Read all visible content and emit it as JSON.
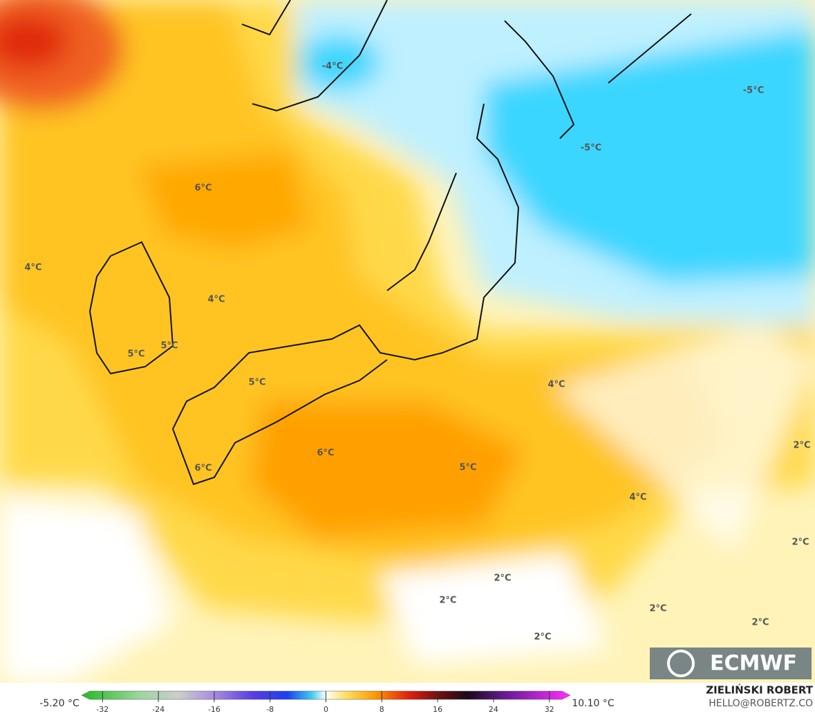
{
  "map": {
    "labels": [
      "-4°C",
      "-5°C",
      "-5°C",
      "6°C",
      "4°C",
      "4°C",
      "5°C",
      "5°C",
      "5°C",
      "4°C",
      "6°C",
      "5°C",
      "6°C",
      "2°C",
      "4°C",
      "2°C",
      "2°C",
      "2°C",
      "2°C",
      "2°C",
      "2°C"
    ],
    "logo": "ECMWF",
    "colorbar": {
      "min_label": "-5.20 °C",
      "max_label": "10.10 °C",
      "lim": [
        -35,
        35
      ],
      "ticks": [
        -32,
        -24,
        -16,
        -8,
        0,
        8,
        16,
        24,
        32
      ]
    },
    "author": "ZIELIŃSKI ROBERT",
    "contact": "HELLO@ROBERTZ.CO"
  }
}
